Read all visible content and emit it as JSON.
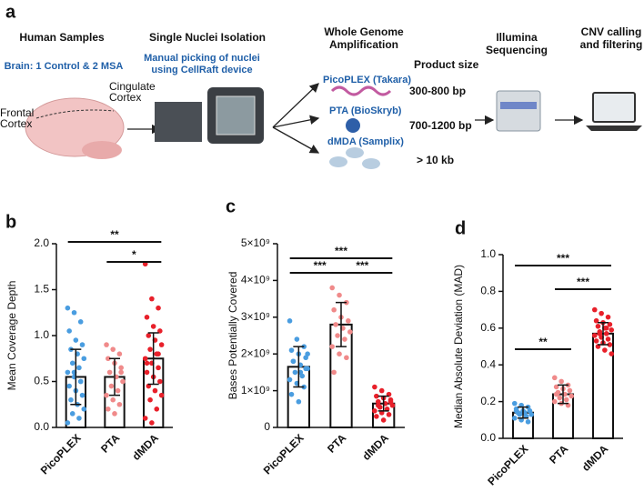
{
  "diagram": {
    "panel": "a",
    "human_samples": {
      "title": "Human Samples",
      "note": "Brain: 1 Control & 2 MSA",
      "cingulate": [
        "Cingulate",
        "Cortex"
      ],
      "frontal": [
        "Frontal",
        "Cortex"
      ]
    },
    "nuclei": {
      "title": "Single Nuclei Isolation",
      "note": [
        "Manual picking of nuclei",
        "using CellRaft device"
      ]
    },
    "wga": {
      "title": [
        "Whole Genome",
        "Amplification"
      ],
      "methods": [
        "PicoPLEX (Takara)",
        "PTA (BioSkryb)",
        "dMDA (Samplix)"
      ],
      "size_title": "Product size",
      "sizes": [
        "300-800 bp",
        "700-1200 bp",
        "> 10 kb"
      ]
    },
    "sequencing": [
      "Illumina",
      "Sequencing"
    ],
    "cnv": [
      "CNV calling",
      "and filtering"
    ]
  },
  "chart_data": [
    {
      "type": "bar",
      "panel": "b",
      "y_label": "Mean Coverage Depth",
      "categories": [
        "PicoPLEX",
        "PTA",
        "dMDA"
      ],
      "colors": [
        "#4a9de0",
        "#f08a8a",
        "#e8202a"
      ],
      "values": [
        0.55,
        0.55,
        0.75
      ],
      "errors": [
        0.3,
        0.2,
        0.28
      ],
      "points": [
        [
          1.3,
          1.25,
          1.15,
          1.05,
          0.95,
          0.9,
          0.85,
          0.8,
          0.75,
          0.7,
          0.65,
          0.6,
          0.55,
          0.5,
          0.45,
          0.4,
          0.35,
          0.3,
          0.25,
          0.2,
          0.15,
          0.1,
          0.05,
          0.6,
          0.5
        ],
        [
          0.9,
          0.85,
          0.8,
          0.75,
          0.7,
          0.65,
          0.6,
          0.55,
          0.5,
          0.45,
          0.4,
          0.35,
          0.3,
          0.25,
          0.2,
          0.15,
          0.6
        ],
        [
          1.78,
          1.4,
          1.3,
          1.2,
          1.1,
          1.05,
          1.0,
          0.95,
          0.9,
          0.85,
          0.8,
          0.75,
          0.7,
          0.65,
          0.6,
          0.55,
          0.5,
          0.45,
          0.4,
          0.35,
          0.3,
          0.2,
          0.1,
          0.05,
          0.8,
          0.7
        ]
      ],
      "ylim": [
        0,
        2.0
      ],
      "yticks": [
        {
          "value": 0,
          "label": "0.0"
        },
        0.5,
        {
          "value": 1,
          "label": "1.0"
        },
        1.5,
        {
          "value": 2,
          "label": "2.0"
        }
      ],
      "significance": [
        {
          "pair": [
            "PicoPLEX",
            "dMDA"
          ],
          "label": "**"
        },
        {
          "pair": [
            "PTA",
            "dMDA"
          ],
          "label": "*"
        }
      ]
    },
    {
      "type": "bar",
      "panel": "c",
      "y_label": "Bases Potentially Covered",
      "categories": [
        "PicoPLEX",
        "PTA",
        "dMDA"
      ],
      "colors": [
        "#4a9de0",
        "#f08a8a",
        "#e8202a"
      ],
      "values": [
        1650000000.0,
        2800000000.0,
        650000000.0
      ],
      "errors": [
        550000000.0,
        600000000.0,
        200000000.0
      ],
      "points": [
        [
          2900000000.0,
          2400000000.0,
          2200000000.0,
          2100000000.0,
          2000000000.0,
          1900000000.0,
          1800000000.0,
          1700000000.0,
          1600000000.0,
          1500000000.0,
          1400000000.0,
          1300000000.0,
          1200000000.0,
          1100000000.0,
          900000000.0,
          700000000.0,
          1600000000.0,
          1800000000.0,
          1500000000.0,
          2000000000.0
        ],
        [
          3800000000.0,
          3600000000.0,
          3400000000.0,
          3200000000.0,
          3000000000.0,
          2900000000.0,
          2800000000.0,
          2700000000.0,
          2600000000.0,
          2500000000.0,
          2400000000.0,
          2200000000.0,
          2000000000.0,
          1900000000.0,
          1500000000.0
        ],
        [
          1100000000.0,
          1000000000.0,
          900000000.0,
          850000000.0,
          800000000.0,
          750000000.0,
          700000000.0,
          650000000.0,
          600000000.0,
          550000000.0,
          500000000.0,
          450000000.0,
          400000000.0,
          350000000.0,
          300000000.0,
          200000000.0,
          700000000.0,
          600000000.0
        ]
      ],
      "ylim": [
        0,
        5000000000.0
      ],
      "yticks": [
        0,
        {
          "value": 1000000000.0,
          "label": "1×10⁹"
        },
        {
          "value": 2000000000.0,
          "label": "2×10⁹"
        },
        {
          "value": 3000000000.0,
          "label": "3×10⁹"
        },
        {
          "value": 4000000000.0,
          "label": "4×10⁹"
        },
        {
          "value": 5000000000.0,
          "label": "5×10⁹"
        }
      ],
      "significance": [
        {
          "pair": [
            "PicoPLEX",
            "dMDA"
          ],
          "label": "***"
        },
        {
          "pair": [
            "PicoPLEX",
            "PTA"
          ],
          "label": "***"
        },
        {
          "pair": [
            "PTA",
            "dMDA"
          ],
          "label": "***"
        }
      ]
    },
    {
      "type": "bar",
      "panel": "d",
      "y_label": "Median Absolute Deviation (MAD)",
      "categories": [
        "PicoPLEX",
        "PTA",
        "dMDA"
      ],
      "colors": [
        "#4a9de0",
        "#f08a8a",
        "#e8202a"
      ],
      "values": [
        0.14,
        0.24,
        0.57
      ],
      "errors": [
        0.03,
        0.05,
        0.06
      ],
      "points": [
        [
          0.19,
          0.18,
          0.17,
          0.16,
          0.15,
          0.15,
          0.14,
          0.14,
          0.13,
          0.13,
          0.12,
          0.11,
          0.1,
          0.09,
          0.15,
          0.14
        ],
        [
          0.33,
          0.31,
          0.29,
          0.28,
          0.27,
          0.26,
          0.25,
          0.24,
          0.23,
          0.22,
          0.21,
          0.2,
          0.19,
          0.18,
          0.24
        ],
        [
          0.7,
          0.68,
          0.66,
          0.64,
          0.63,
          0.62,
          0.61,
          0.6,
          0.59,
          0.58,
          0.57,
          0.56,
          0.55,
          0.54,
          0.53,
          0.52,
          0.51,
          0.5,
          0.48,
          0.46,
          0.57,
          0.6
        ]
      ],
      "ylim": [
        0,
        1.0
      ],
      "yticks": [
        {
          "value": 0,
          "label": "0.0"
        },
        0.2,
        0.4,
        0.6,
        0.8,
        {
          "value": 1,
          "label": "1.0"
        }
      ],
      "significance": [
        {
          "pair": [
            "PicoPLEX",
            "dMDA"
          ],
          "label": "***"
        },
        {
          "pair": [
            "PTA",
            "dMDA"
          ],
          "label": "***"
        },
        {
          "pair": [
            "PicoPLEX",
            "PTA"
          ],
          "label": "**"
        }
      ]
    }
  ]
}
